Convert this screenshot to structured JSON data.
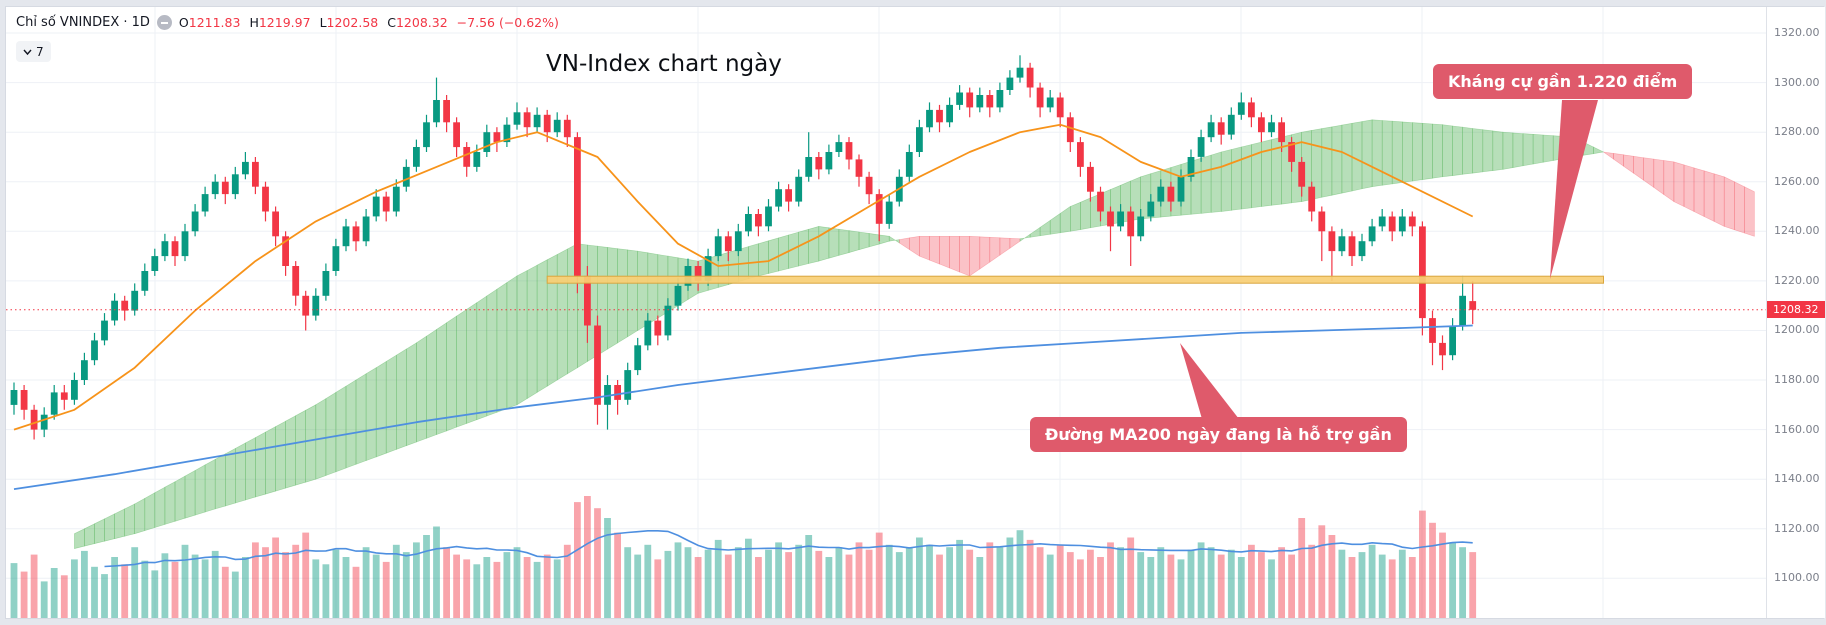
{
  "legend": {
    "symbol": "Chỉ số VNINDEX · 1D",
    "source_icon": "minus-circle-icon",
    "ohlc": {
      "o_label": "O",
      "o": "1211.83",
      "h_label": "H",
      "h": "1219.97",
      "l_label": "L",
      "l": "1202.58",
      "c_label": "C",
      "c": "1208.32",
      "change": "−7.56 (−0.62%)"
    },
    "collapse_count": "7"
  },
  "title": "VN-Index chart ngày",
  "annotations": [
    {
      "text": "Kháng cự gần 1.220 điểm",
      "color": "#df5a6b"
    },
    {
      "text": "Đường MA200 ngày đang là hỗ trợ gần",
      "color": "#df5a6b"
    }
  ],
  "axis": {
    "ticks": [
      {
        "value": 1320,
        "label": "1320.00"
      },
      {
        "value": 1300,
        "label": "1300.00"
      },
      {
        "value": 1280,
        "label": "1280.00"
      },
      {
        "value": 1260,
        "label": "1260.00"
      },
      {
        "value": 1240,
        "label": "1240.00"
      },
      {
        "value": 1220,
        "label": "1220.00"
      },
      {
        "value": 1200,
        "label": "1200.00"
      },
      {
        "value": 1180,
        "label": "1180.00"
      },
      {
        "value": 1160,
        "label": "1160.00"
      },
      {
        "value": 1140,
        "label": "1140.00"
      },
      {
        "value": 1120,
        "label": "1120.00"
      },
      {
        "value": 1100,
        "label": "1100.00"
      }
    ],
    "last": {
      "value": 1208.32,
      "label": "1208.32",
      "color": "#f23645"
    }
  },
  "chart_data": {
    "type": "candlestick",
    "title": "VN-Index chart ngày",
    "symbol": "VNINDEX",
    "interval": "1D",
    "last_ohlc": {
      "open": 1211.83,
      "high": 1219.97,
      "low": 1202.58,
      "close": 1208.32,
      "change": -7.56,
      "change_pct": -0.62
    },
    "ylim": [
      1084,
      1330.5
    ],
    "y_ticks": [
      1100,
      1120,
      1140,
      1160,
      1180,
      1200,
      1220,
      1240,
      1260,
      1280,
      1300,
      1320
    ],
    "volume_ylim": [
      0,
      100
    ],
    "colors": {
      "up": "#089981",
      "down": "#f23645",
      "vol_up": "rgba(8,153,129,0.45)",
      "vol_down": "rgba(242,54,69,0.45)",
      "grid": "#eef1f6"
    },
    "candles": [
      [
        1170,
        1179,
        1166,
        1176
      ],
      [
        1176,
        1178,
        1164,
        1168
      ],
      [
        1168,
        1170,
        1156,
        1160
      ],
      [
        1160,
        1169,
        1157,
        1166
      ],
      [
        1166,
        1178,
        1164,
        1175
      ],
      [
        1175,
        1178,
        1168,
        1172
      ],
      [
        1172,
        1183,
        1170,
        1180
      ],
      [
        1180,
        1191,
        1178,
        1188
      ],
      [
        1188,
        1199,
        1186,
        1196
      ],
      [
        1196,
        1207,
        1194,
        1204
      ],
      [
        1204,
        1215,
        1202,
        1212
      ],
      [
        1212,
        1214,
        1204,
        1208
      ],
      [
        1208,
        1219,
        1206,
        1216
      ],
      [
        1216,
        1227,
        1214,
        1224
      ],
      [
        1224,
        1233,
        1222,
        1230
      ],
      [
        1230,
        1239,
        1228,
        1236
      ],
      [
        1236,
        1238,
        1226,
        1230
      ],
      [
        1230,
        1243,
        1228,
        1240
      ],
      [
        1240,
        1251,
        1238,
        1248
      ],
      [
        1248,
        1258,
        1246,
        1255
      ],
      [
        1255,
        1263,
        1253,
        1260
      ],
      [
        1260,
        1262,
        1251,
        1255
      ],
      [
        1255,
        1266,
        1253,
        1263
      ],
      [
        1263,
        1272,
        1261,
        1268
      ],
      [
        1268,
        1270,
        1255,
        1258
      ],
      [
        1258,
        1260,
        1244,
        1248
      ],
      [
        1248,
        1250,
        1234,
        1238
      ],
      [
        1238,
        1240,
        1222,
        1226
      ],
      [
        1226,
        1228,
        1210,
        1214
      ],
      [
        1214,
        1216,
        1200,
        1206
      ],
      [
        1206,
        1217,
        1204,
        1214
      ],
      [
        1214,
        1227,
        1212,
        1224
      ],
      [
        1224,
        1237,
        1222,
        1234
      ],
      [
        1234,
        1245,
        1232,
        1242
      ],
      [
        1242,
        1244,
        1232,
        1236
      ],
      [
        1236,
        1249,
        1234,
        1246
      ],
      [
        1246,
        1257,
        1244,
        1254
      ],
      [
        1254,
        1256,
        1244,
        1248
      ],
      [
        1248,
        1261,
        1246,
        1258
      ],
      [
        1258,
        1269,
        1256,
        1266
      ],
      [
        1266,
        1277,
        1264,
        1274
      ],
      [
        1274,
        1287,
        1272,
        1284
      ],
      [
        1284,
        1302,
        1282,
        1293
      ],
      [
        1293,
        1295,
        1280,
        1284
      ],
      [
        1284,
        1286,
        1270,
        1274
      ],
      [
        1274,
        1276,
        1262,
        1266
      ],
      [
        1266,
        1275,
        1264,
        1272
      ],
      [
        1272,
        1283,
        1270,
        1280
      ],
      [
        1280,
        1282,
        1272,
        1276
      ],
      [
        1276,
        1286,
        1274,
        1283
      ],
      [
        1283,
        1292,
        1281,
        1288
      ],
      [
        1288,
        1290,
        1278,
        1282
      ],
      [
        1282,
        1290,
        1280,
        1287
      ],
      [
        1287,
        1289,
        1276,
        1280
      ],
      [
        1280,
        1288,
        1278,
        1285
      ],
      [
        1285,
        1287,
        1274,
        1278
      ],
      [
        1278,
        1280,
        1215,
        1222
      ],
      [
        1222,
        1226,
        1195,
        1202
      ],
      [
        1202,
        1206,
        1162,
        1170
      ],
      [
        1170,
        1182,
        1160,
        1178
      ],
      [
        1178,
        1180,
        1166,
        1172
      ],
      [
        1172,
        1187,
        1170,
        1184
      ],
      [
        1184,
        1197,
        1182,
        1194
      ],
      [
        1194,
        1207,
        1192,
        1204
      ],
      [
        1204,
        1206,
        1194,
        1198
      ],
      [
        1198,
        1213,
        1196,
        1210
      ],
      [
        1210,
        1221,
        1208,
        1218
      ],
      [
        1218,
        1229,
        1216,
        1226
      ],
      [
        1226,
        1228,
        1216,
        1220
      ],
      [
        1220,
        1233,
        1218,
        1230
      ],
      [
        1230,
        1241,
        1228,
        1238
      ],
      [
        1238,
        1240,
        1228,
        1232
      ],
      [
        1232,
        1243,
        1230,
        1240
      ],
      [
        1240,
        1250,
        1238,
        1247
      ],
      [
        1247,
        1249,
        1238,
        1242
      ],
      [
        1242,
        1253,
        1240,
        1250
      ],
      [
        1250,
        1260,
        1248,
        1257
      ],
      [
        1257,
        1259,
        1248,
        1252
      ],
      [
        1252,
        1265,
        1250,
        1262
      ],
      [
        1262,
        1280,
        1260,
        1270
      ],
      [
        1270,
        1272,
        1261,
        1265
      ],
      [
        1265,
        1275,
        1263,
        1272
      ],
      [
        1272,
        1279,
        1270,
        1276
      ],
      [
        1276,
        1278,
        1265,
        1269
      ],
      [
        1269,
        1271,
        1258,
        1262
      ],
      [
        1262,
        1264,
        1251,
        1255
      ],
      [
        1255,
        1257,
        1236,
        1243
      ],
      [
        1243,
        1255,
        1241,
        1252
      ],
      [
        1252,
        1265,
        1250,
        1262
      ],
      [
        1262,
        1275,
        1260,
        1272
      ],
      [
        1272,
        1285,
        1270,
        1282
      ],
      [
        1282,
        1292,
        1280,
        1289
      ],
      [
        1289,
        1291,
        1280,
        1284
      ],
      [
        1284,
        1294,
        1282,
        1291
      ],
      [
        1291,
        1299,
        1289,
        1296
      ],
      [
        1296,
        1298,
        1286,
        1290
      ],
      [
        1290,
        1298,
        1288,
        1295
      ],
      [
        1295,
        1297,
        1286,
        1290
      ],
      [
        1290,
        1300,
        1288,
        1297
      ],
      [
        1297,
        1305,
        1295,
        1302
      ],
      [
        1302,
        1311,
        1300,
        1306
      ],
      [
        1306,
        1308,
        1294,
        1298
      ],
      [
        1298,
        1300,
        1286,
        1290
      ],
      [
        1290,
        1297,
        1288,
        1294
      ],
      [
        1294,
        1296,
        1282,
        1286
      ],
      [
        1286,
        1288,
        1272,
        1276
      ],
      [
        1276,
        1278,
        1262,
        1266
      ],
      [
        1266,
        1268,
        1252,
        1256
      ],
      [
        1256,
        1258,
        1244,
        1248
      ],
      [
        1248,
        1250,
        1232,
        1242
      ],
      [
        1242,
        1251,
        1240,
        1248
      ],
      [
        1248,
        1250,
        1226,
        1238
      ],
      [
        1238,
        1249,
        1236,
        1246
      ],
      [
        1246,
        1255,
        1244,
        1252
      ],
      [
        1252,
        1261,
        1250,
        1258
      ],
      [
        1258,
        1260,
        1248,
        1252
      ],
      [
        1252,
        1265,
        1250,
        1262
      ],
      [
        1262,
        1273,
        1260,
        1270
      ],
      [
        1270,
        1281,
        1268,
        1278
      ],
      [
        1278,
        1287,
        1276,
        1284
      ],
      [
        1284,
        1286,
        1275,
        1279
      ],
      [
        1279,
        1290,
        1277,
        1287
      ],
      [
        1287,
        1296,
        1285,
        1292
      ],
      [
        1292,
        1294,
        1282,
        1286
      ],
      [
        1286,
        1288,
        1276,
        1280
      ],
      [
        1280,
        1287,
        1278,
        1284
      ],
      [
        1284,
        1286,
        1272,
        1276
      ],
      [
        1276,
        1278,
        1264,
        1268
      ],
      [
        1268,
        1270,
        1254,
        1258
      ],
      [
        1258,
        1260,
        1244,
        1248
      ],
      [
        1248,
        1250,
        1228,
        1240
      ],
      [
        1240,
        1242,
        1220,
        1232
      ],
      [
        1232,
        1241,
        1230,
        1238
      ],
      [
        1238,
        1240,
        1226,
        1230
      ],
      [
        1230,
        1239,
        1228,
        1236
      ],
      [
        1236,
        1245,
        1234,
        1242
      ],
      [
        1242,
        1249,
        1240,
        1246
      ],
      [
        1246,
        1248,
        1236,
        1240
      ],
      [
        1240,
        1249,
        1238,
        1246
      ],
      [
        1246,
        1248,
        1238,
        1242
      ],
      [
        1242,
        1244,
        1198,
        1205
      ],
      [
        1205,
        1208,
        1186,
        1195
      ],
      [
        1195,
        1198,
        1184,
        1190
      ],
      [
        1190,
        1205,
        1188,
        1202
      ],
      [
        1202,
        1222,
        1200,
        1214
      ],
      [
        1211.83,
        1219.97,
        1202.58,
        1208.32
      ]
    ],
    "volume": [
      45,
      38,
      52,
      30,
      41,
      35,
      48,
      55,
      42,
      36,
      50,
      44,
      58,
      47,
      39,
      53,
      46,
      60,
      52,
      48,
      55,
      42,
      38,
      50,
      62,
      58,
      66,
      54,
      60,
      70,
      48,
      44,
      56,
      50,
      42,
      58,
      52,
      46,
      60,
      54,
      62,
      68,
      75,
      58,
      52,
      48,
      44,
      50,
      46,
      54,
      58,
      50,
      46,
      52,
      48,
      60,
      95,
      100,
      90,
      82,
      70,
      58,
      52,
      60,
      48,
      55,
      62,
      58,
      50,
      56,
      64,
      52,
      58,
      65,
      50,
      56,
      62,
      54,
      60,
      68,
      55,
      50,
      58,
      52,
      62,
      56,
      70,
      60,
      54,
      58,
      66,
      60,
      52,
      58,
      64,
      56,
      50,
      62,
      58,
      66,
      72,
      64,
      58,
      52,
      60,
      54,
      48,
      56,
      50,
      62,
      58,
      66,
      54,
      50,
      58,
      52,
      48,
      56,
      62,
      58,
      52,
      56,
      50,
      60,
      54,
      48,
      58,
      52,
      82,
      60,
      76,
      68,
      56,
      50,
      54,
      60,
      52,
      48,
      56,
      50,
      88,
      78,
      70,
      62,
      58,
      54
    ],
    "overlays": {
      "ma_orange": {
        "name": "MA fast",
        "color": "#f7931a",
        "points": [
          [
            0,
            1160
          ],
          [
            6,
            1168
          ],
          [
            12,
            1185
          ],
          [
            18,
            1208
          ],
          [
            24,
            1228
          ],
          [
            30,
            1244
          ],
          [
            36,
            1256
          ],
          [
            42,
            1266
          ],
          [
            48,
            1276
          ],
          [
            52,
            1280
          ],
          [
            58,
            1270
          ],
          [
            62,
            1252
          ],
          [
            66,
            1235
          ],
          [
            70,
            1226
          ],
          [
            75,
            1228
          ],
          [
            80,
            1238
          ],
          [
            85,
            1250
          ],
          [
            90,
            1262
          ],
          [
            95,
            1272
          ],
          [
            100,
            1280
          ],
          [
            104,
            1283
          ],
          [
            108,
            1278
          ],
          [
            112,
            1268
          ],
          [
            116,
            1262
          ],
          [
            120,
            1266
          ],
          [
            124,
            1272
          ],
          [
            128,
            1276
          ],
          [
            132,
            1272
          ],
          [
            136,
            1264
          ],
          [
            140,
            1256
          ],
          [
            145,
            1246
          ]
        ]
      },
      "ma200": {
        "name": "MA200",
        "color": "#4e8fe0",
        "points": [
          [
            0,
            1136
          ],
          [
            10,
            1142
          ],
          [
            20,
            1149
          ],
          [
            30,
            1156
          ],
          [
            40,
            1163
          ],
          [
            50,
            1169
          ],
          [
            58,
            1173
          ],
          [
            66,
            1178
          ],
          [
            74,
            1182
          ],
          [
            82,
            1186
          ],
          [
            90,
            1190
          ],
          [
            98,
            1193
          ],
          [
            106,
            1195
          ],
          [
            114,
            1197
          ],
          [
            122,
            1199
          ],
          [
            130,
            1200
          ],
          [
            138,
            1201
          ],
          [
            145,
            1202
          ]
        ]
      },
      "volume_ma": {
        "window": 10,
        "color": "#4e8fe0"
      },
      "ichimoku_cloud": {
        "bull_color": "rgba(76,175,80,0.40)",
        "bear_color": "rgba(242,54,69,0.30)",
        "points": [
          [
            6,
            1118,
            1112
          ],
          [
            12,
            1130,
            1118
          ],
          [
            20,
            1148,
            1128
          ],
          [
            30,
            1170,
            1140
          ],
          [
            40,
            1195,
            1155
          ],
          [
            50,
            1222,
            1170
          ],
          [
            56,
            1235,
            1185
          ],
          [
            62,
            1232,
            1200
          ],
          [
            68,
            1228,
            1215
          ],
          [
            74,
            1235,
            1222
          ],
          [
            80,
            1242,
            1228
          ],
          [
            87,
            1238,
            1236
          ],
          [
            90,
            1230,
            1238
          ],
          [
            95,
            1222,
            1238
          ],
          [
            100,
            1236,
            1237
          ],
          [
            105,
            1250,
            1240
          ],
          [
            112,
            1262,
            1245
          ],
          [
            120,
            1272,
            1248
          ],
          [
            128,
            1280,
            1252
          ],
          [
            135,
            1285,
            1258
          ],
          [
            142,
            1283,
            1262
          ],
          [
            148,
            1280,
            1265
          ],
          [
            155,
            1278,
            1270
          ],
          [
            158,
            1272,
            1272
          ],
          [
            165,
            1252,
            1268
          ],
          [
            170,
            1242,
            1262
          ],
          [
            173,
            1238,
            1256
          ]
        ]
      },
      "resistance_band": {
        "price": 1220.5,
        "from_i": 53,
        "to_i": 158,
        "fill": "#f8cf75",
        "stroke": "#d9a63f"
      },
      "last_price_line": {
        "price": 1208.32,
        "color": "#f23645"
      }
    }
  }
}
